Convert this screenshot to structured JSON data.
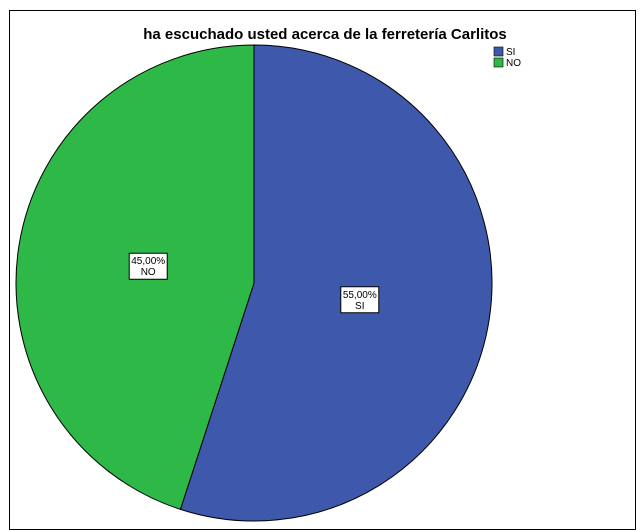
{
  "chart_data": {
    "type": "pie",
    "title": "ha escuchado usted acerca de la ferretería Carlitos",
    "categories": [
      "SI",
      "NO"
    ],
    "values": [
      55.0,
      45.0
    ],
    "value_labels": [
      "55,00%",
      "45,00%"
    ],
    "colors": [
      "#3E58AC",
      "#2EB848"
    ],
    "legend": {
      "position": "top-right",
      "entries": [
        "SI",
        "NO"
      ]
    },
    "start_angle_deg": 0,
    "direction": "clockwise"
  }
}
